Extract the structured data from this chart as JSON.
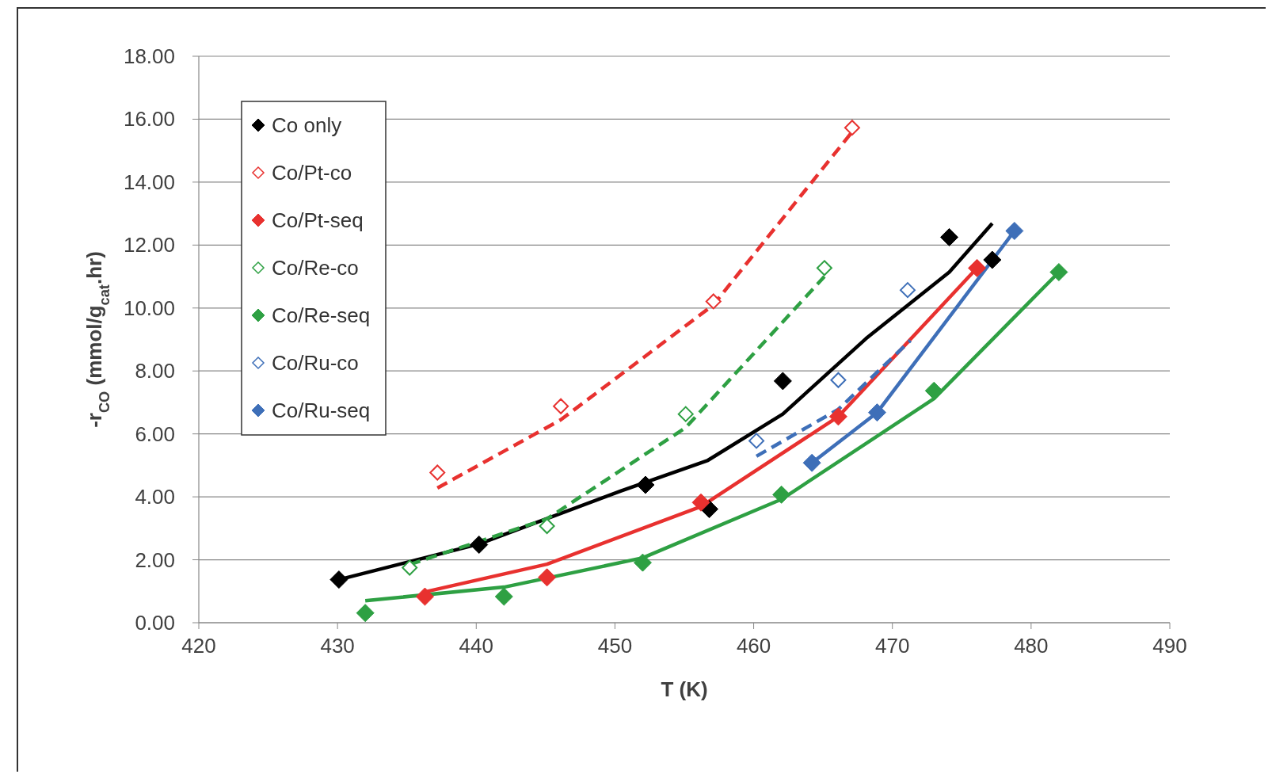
{
  "chart_data": {
    "type": "scatter",
    "xlabel": "T (K)",
    "ylabel": "-r$_{CO}$ (mmol/g$_{cat}$.hr)",
    "xlim": [
      420,
      490
    ],
    "xticks": [
      420,
      430,
      440,
      450,
      460,
      470,
      480,
      490
    ],
    "ylim": [
      0,
      18
    ],
    "yticks": [
      {
        "value": 0,
        "label": "0.00"
      },
      {
        "value": 2,
        "label": "2.00"
      },
      {
        "value": 4,
        "label": "4.00"
      },
      {
        "value": 6,
        "label": "6.00"
      },
      {
        "value": 8,
        "label": "8.00"
      },
      {
        "value": 10,
        "label": "10.00"
      },
      {
        "value": 12,
        "label": "12.00"
      },
      {
        "value": 14,
        "label": "14.00"
      },
      {
        "value": 16,
        "label": "16.00"
      },
      {
        "value": 18,
        "label": "18.00"
      }
    ],
    "grid": "y",
    "legend": "top left",
    "series": [
      {
        "type": "line",
        "marker": "none",
        "color": "#000000",
        "line_style": "solid",
        "x": [
          430.1,
          440.2,
          450.4,
          456.7,
          462.1,
          468.1,
          474.1,
          477.2
        ],
        "values": [
          1.37,
          2.5,
          4.18,
          5.16,
          6.63,
          9.03,
          11.14,
          12.69
        ]
      },
      {
        "type": "line",
        "marker": "none",
        "color": "#e8312f",
        "line_style": "dashed",
        "x": [
          437.2,
          446.1,
          457.1,
          467.1
        ],
        "values": [
          4.28,
          6.45,
          10.1,
          15.6
        ]
      },
      {
        "type": "line",
        "marker": "none",
        "color": "#e8312f",
        "line_style": "solid",
        "x": [
          436.3,
          445.1,
          456.2,
          466.1,
          476.1
        ],
        "values": [
          0.98,
          1.86,
          3.69,
          6.55,
          11.27
        ]
      },
      {
        "type": "line",
        "marker": "none",
        "color": "#2ea043",
        "line_style": "dashed",
        "x": [
          435.2,
          445.1,
          455.1,
          465.1
        ],
        "values": [
          1.85,
          3.3,
          6.2,
          11.0
        ]
      },
      {
        "type": "line",
        "marker": "none",
        "color": "#2ea043",
        "line_style": "solid",
        "x": [
          432,
          442,
          452,
          462,
          473,
          482
        ],
        "values": [
          0.7,
          1.13,
          2.06,
          3.92,
          7.12,
          11.14
        ]
      },
      {
        "type": "line",
        "marker": "none",
        "color": "#3e6fb8",
        "line_style": "dashed",
        "x": [
          460.2,
          466.1,
          471.3
        ],
        "values": [
          5.29,
          6.78,
          8.97
        ]
      },
      {
        "type": "line",
        "marker": "none",
        "color": "#3e6fb8",
        "line_style": "solid",
        "x": [
          464.2,
          468.9,
          478.8
        ],
        "values": [
          5.08,
          6.68,
          12.45
        ]
      },
      {
        "name": "Co only",
        "marker": "diamond",
        "color": "#000000",
        "x": [
          430.1,
          440.2,
          452.2,
          456.8,
          462.1,
          474.1,
          477.2
        ],
        "values": [
          1.37,
          2.48,
          4.38,
          3.61,
          7.68,
          12.25,
          11.53
        ]
      },
      {
        "name": "Co/Pt-co",
        "marker": "diamond",
        "line_style": "dashed",
        "color": "#e8312f",
        "x": [
          437.2,
          446.1,
          457.1,
          467.1
        ],
        "values": [
          4.77,
          6.88,
          10.21,
          15.73
        ]
      },
      {
        "name": "Co/Pt-seq",
        "marker": "diamond",
        "color": "#e8312f",
        "x": [
          436.3,
          445.1,
          456.2,
          466.1,
          476.1
        ],
        "values": [
          0.83,
          1.44,
          3.82,
          6.55,
          11.27
        ]
      },
      {
        "name": "Co/Re-co",
        "marker": "diamond",
        "line_style": "dashed",
        "color": "#2ea043",
        "x": [
          435.2,
          445.1,
          455.1,
          465.1
        ],
        "values": [
          1.75,
          3.07,
          6.63,
          11.27
        ]
      },
      {
        "name": "Co/Re-seq",
        "marker": "diamond",
        "color": "#2ea043",
        "x": [
          432,
          442,
          452,
          462,
          473,
          482
        ],
        "values": [
          0.31,
          0.83,
          1.91,
          4.07,
          7.37,
          11.14
        ]
      },
      {
        "name": "Co/Ru-co",
        "marker": "diamond",
        "line_style": "dashed",
        "color": "#3e6fb8",
        "x": [
          460.2,
          466.1,
          471.1
        ],
        "values": [
          5.78,
          7.71,
          10.57
        ]
      },
      {
        "name": "Co/Ru-seq",
        "marker": "diamond",
        "color": "#3e6fb8",
        "x": [
          464.2,
          468.9,
          478.8
        ],
        "values": [
          5.08,
          6.68,
          12.45
        ]
      }
    ]
  }
}
